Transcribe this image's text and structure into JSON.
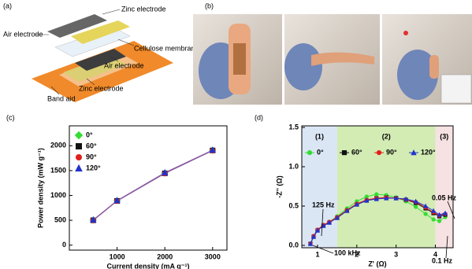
{
  "panels": {
    "a": {
      "letter": "(a)",
      "labels": [
        "Zinc electrode",
        "Air electrode",
        "Cellulose membrane",
        "Air electrode",
        "Zinc electrode",
        "Band aid"
      ]
    },
    "b": {
      "letter": "(b)"
    }
  },
  "chart_data": [
    {
      "type": "line",
      "letter": "(c)",
      "x_label": "Current density (mA g⁻¹)",
      "y_label": "Power density (mW g⁻¹)",
      "x": [
        500,
        1000,
        2000,
        3000
      ],
      "xlim": [
        0,
        3300
      ],
      "xticks": [
        1000,
        2000,
        3000
      ],
      "ylim": [
        -100,
        2400
      ],
      "yticks": [
        0,
        500,
        1000,
        1500,
        2000
      ],
      "line_color": "#8a5aa0",
      "legend": "upper left",
      "series": [
        {
          "name": "0°",
          "color": "#33dd33",
          "marker": "diamond",
          "values": [
            505,
            895,
            1450,
            1910
          ]
        },
        {
          "name": "60°",
          "color": "#111111",
          "marker": "square",
          "values": [
            500,
            890,
            1445,
            1905
          ]
        },
        {
          "name": "90°",
          "color": "#e0201b",
          "marker": "circle",
          "values": [
            495,
            885,
            1440,
            1900
          ]
        },
        {
          "name": "120°",
          "color": "#2233cc",
          "marker": "triangle",
          "values": [
            510,
            900,
            1460,
            1915
          ]
        }
      ]
    },
    {
      "type": "line",
      "letter": "(d)",
      "x_label": "Z' (Ω)",
      "y_label": "-Z'' (Ω)",
      "x": [
        0.82,
        0.9,
        1.0,
        1.15,
        1.3,
        1.5,
        1.75,
        2.0,
        2.25,
        2.5,
        2.75,
        3.0,
        3.25,
        3.5,
        3.75,
        3.95,
        4.1,
        4.25
      ],
      "xlim": [
        0.6,
        4.45
      ],
      "xticks": [
        1,
        2,
        3,
        4
      ],
      "ylim": [
        -0.03,
        1.52
      ],
      "yticks": [
        {
          "value": 0,
          "label": "0.0"
        },
        0.5,
        {
          "value": 1,
          "label": "1.0"
        },
        1.5
      ],
      "legend": "upper center",
      "regions": [
        {
          "label": "(1)",
          "from": 0.6,
          "to": 1.5,
          "color": "#dbe6f5"
        },
        {
          "label": "(2)",
          "from": 1.5,
          "to": 4.0,
          "color": "#d2ecb4"
        },
        {
          "label": "(3)",
          "from": 4.0,
          "to": 4.45,
          "color": "#f6e2e2"
        }
      ],
      "annotations": [
        "125 Hz",
        "100 kHz",
        "0.05 Hz",
        "0.1 Hz"
      ],
      "series": [
        {
          "name": "0°",
          "color": "#33dd33",
          "marker": "circle",
          "values": [
            0.02,
            0.12,
            0.2,
            0.26,
            0.3,
            0.37,
            0.47,
            0.56,
            0.62,
            0.65,
            0.64,
            0.61,
            0.56,
            0.49,
            0.4,
            0.33,
            0.31,
            0.36
          ]
        },
        {
          "name": "60°",
          "color": "#111111",
          "marker": "square",
          "values": [
            0.02,
            0.11,
            0.19,
            0.25,
            0.29,
            0.35,
            0.44,
            0.52,
            0.57,
            0.6,
            0.61,
            0.6,
            0.58,
            0.54,
            0.47,
            0.41,
            0.37,
            0.39
          ]
        },
        {
          "name": "90°",
          "color": "#e0201b",
          "marker": "circle",
          "values": [
            0.02,
            0.12,
            0.2,
            0.26,
            0.3,
            0.36,
            0.45,
            0.53,
            0.58,
            0.6,
            0.61,
            0.6,
            0.58,
            0.55,
            0.48,
            0.42,
            0.38,
            0.4
          ]
        },
        {
          "name": "120°",
          "color": "#2233cc",
          "marker": "triangle",
          "values": [
            0.02,
            0.11,
            0.19,
            0.25,
            0.29,
            0.35,
            0.44,
            0.52,
            0.57,
            0.59,
            0.6,
            0.6,
            0.59,
            0.56,
            0.5,
            0.44,
            0.39,
            0.41
          ]
        }
      ]
    }
  ]
}
